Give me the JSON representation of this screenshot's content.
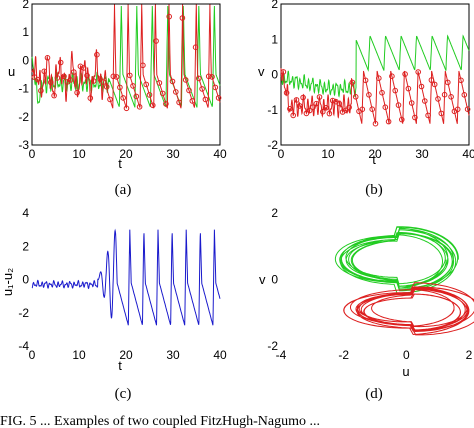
{
  "figure": {
    "panels": [
      {
        "id": "a",
        "caption": "(a)",
        "xlabel": "t",
        "ylabel": "u",
        "xticks": [
          "0",
          "10",
          "20",
          "30",
          "40"
        ],
        "yticks": [
          "2",
          "1",
          "0",
          "-1",
          "-2",
          "-3"
        ]
      },
      {
        "id": "b",
        "caption": "(b)",
        "xlabel": "t",
        "ylabel": "v",
        "xticks": [
          "0",
          "10",
          "20",
          "30",
          "40"
        ],
        "yticks": [
          "2",
          "1",
          "0",
          "-1",
          "-2"
        ]
      },
      {
        "id": "c",
        "caption": "(c)",
        "xlabel": "t",
        "ylabel": "u₁-u₂",
        "xticks": [
          "0",
          "10",
          "20",
          "30",
          "40"
        ],
        "yticks": [
          "4",
          "2",
          "0",
          "-2",
          "-4"
        ]
      },
      {
        "id": "d",
        "caption": "(d)",
        "xlabel": "u",
        "ylabel": "v",
        "xticks": [
          "-4",
          "-2",
          "0",
          "2"
        ],
        "yticks": [
          "2",
          "0",
          "-2"
        ]
      }
    ],
    "footer_text": "FIG. 5 ... Examples of two coupled FitzHugh-Nagumo ..."
  },
  "colors": {
    "series_green": "#22cc22",
    "series_red": "#dd2020",
    "series_blue": "#1a1acc"
  },
  "chart_data": [
    {
      "type": "line",
      "panel": "a",
      "xlabel": "t",
      "ylabel": "u",
      "xlim": [
        0,
        40
      ],
      "ylim": [
        -3,
        2
      ],
      "grid": false,
      "series": [
        {
          "color": "green",
          "values": "oscillation, amplitude ~ -2..2 after t=16"
        },
        {
          "color": "red",
          "marker": "o",
          "values": "oscillation, amplitude ~ -2..2 after t=16"
        }
      ]
    },
    {
      "type": "line",
      "panel": "b",
      "xlabel": "t",
      "ylabel": "v",
      "xlim": [
        0,
        40
      ],
      "ylim": [
        -2,
        2
      ],
      "grid": false,
      "series": [
        {
          "color": "green"
        },
        {
          "color": "red",
          "marker": "o"
        }
      ]
    },
    {
      "type": "line",
      "panel": "c",
      "xlabel": "t",
      "ylabel": "u₁-u₂",
      "xlim": [
        0,
        40
      ],
      "ylim": [
        -4,
        4
      ],
      "grid": false,
      "series": [
        {
          "color": "blue"
        }
      ]
    },
    {
      "type": "line",
      "panel": "d",
      "xlabel": "u",
      "ylabel": "v",
      "xlim": [
        -4,
        2
      ],
      "ylim": [
        -2,
        2
      ],
      "grid": false,
      "series": [
        {
          "color": "green"
        },
        {
          "color": "red"
        }
      ]
    }
  ]
}
